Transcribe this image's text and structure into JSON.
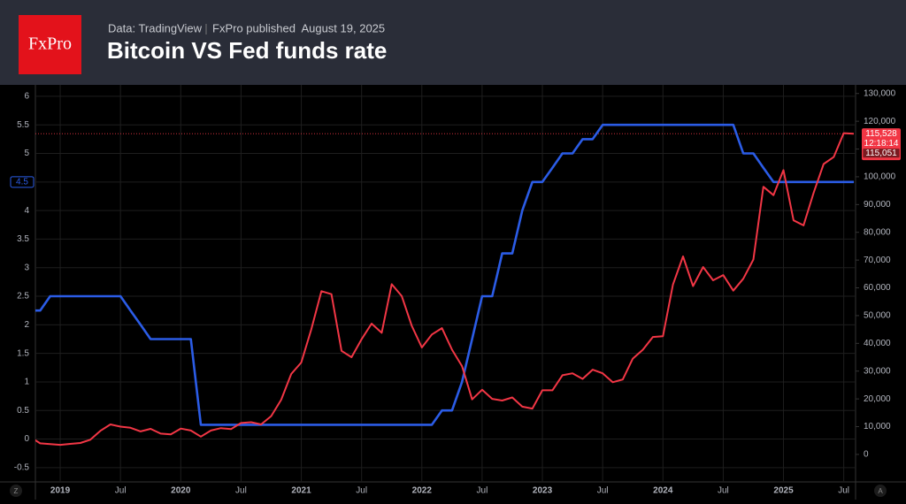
{
  "header": {
    "logo": "FxPro",
    "source": "Data: TradingView",
    "published": "FxPro published  August 19, 2025"
  },
  "ui": {
    "left_button": "Z",
    "right_button": "A"
  },
  "chart_data": {
    "type": "line",
    "title": "Bitcoin VS Fed funds rate",
    "x": [
      "2018-10",
      "2018-11",
      "2018-12",
      "2019-01",
      "2019-02",
      "2019-03",
      "2019-04",
      "2019-05",
      "2019-06",
      "2019-07",
      "2019-08",
      "2019-09",
      "2019-10",
      "2019-11",
      "2019-12",
      "2020-01",
      "2020-02",
      "2020-03",
      "2020-04",
      "2020-05",
      "2020-06",
      "2020-07",
      "2020-08",
      "2020-09",
      "2020-10",
      "2020-11",
      "2020-12",
      "2021-01",
      "2021-02",
      "2021-03",
      "2021-04",
      "2021-05",
      "2021-06",
      "2021-07",
      "2021-08",
      "2021-09",
      "2021-10",
      "2021-11",
      "2021-12",
      "2022-01",
      "2022-02",
      "2022-03",
      "2022-04",
      "2022-05",
      "2022-06",
      "2022-07",
      "2022-08",
      "2022-09",
      "2022-10",
      "2022-11",
      "2022-12",
      "2023-01",
      "2023-02",
      "2023-03",
      "2023-04",
      "2023-05",
      "2023-06",
      "2023-07",
      "2023-08",
      "2023-09",
      "2023-10",
      "2023-11",
      "2023-12",
      "2024-01",
      "2024-02",
      "2024-03",
      "2024-04",
      "2024-05",
      "2024-06",
      "2024-07",
      "2024-08",
      "2024-09",
      "2024-10",
      "2024-11",
      "2024-12",
      "2025-01",
      "2025-02",
      "2025-03",
      "2025-04",
      "2025-05",
      "2025-06",
      "2025-07",
      "2025-08"
    ],
    "series": [
      {
        "name": "Fed funds rate",
        "color": "#2b5ce6",
        "axis": "y",
        "values": [
          2.25,
          2.25,
          2.5,
          2.5,
          2.5,
          2.5,
          2.5,
          2.5,
          2.5,
          2.5,
          2.25,
          2.0,
          1.75,
          1.75,
          1.75,
          1.75,
          1.75,
          0.25,
          0.25,
          0.25,
          0.25,
          0.25,
          0.25,
          0.25,
          0.25,
          0.25,
          0.25,
          0.25,
          0.25,
          0.25,
          0.25,
          0.25,
          0.25,
          0.25,
          0.25,
          0.25,
          0.25,
          0.25,
          0.25,
          0.25,
          0.25,
          0.5,
          0.5,
          1.0,
          1.75,
          2.5,
          2.5,
          3.25,
          3.25,
          4.0,
          4.5,
          4.5,
          4.75,
          5.0,
          5.0,
          5.25,
          5.25,
          5.5,
          5.5,
          5.5,
          5.5,
          5.5,
          5.5,
          5.5,
          5.5,
          5.5,
          5.5,
          5.5,
          5.5,
          5.5,
          5.5,
          5.0,
          5.0,
          4.75,
          4.5,
          4.5,
          4.5,
          4.5,
          4.5,
          4.5,
          4.5,
          4.5,
          4.5
        ]
      },
      {
        "name": "Bitcoin",
        "color": "#f23645",
        "axis": "y2",
        "values": [
          6300,
          4000,
          3700,
          3450,
          3800,
          4100,
          5300,
          8500,
          10800,
          10000,
          9600,
          8300,
          9200,
          7500,
          7200,
          9300,
          8600,
          6400,
          8600,
          9450,
          9100,
          11300,
          11600,
          10800,
          13800,
          19700,
          29000,
          33100,
          45100,
          58800,
          57700,
          37300,
          35000,
          41500,
          47100,
          43800,
          61300,
          57000,
          46300,
          38500,
          43200,
          45500,
          37700,
          31800,
          19800,
          23300,
          20000,
          19400,
          20500,
          17200,
          16500,
          23100,
          23100,
          28500,
          29200,
          27200,
          30500,
          29200,
          26000,
          27000,
          34500,
          37700,
          42300,
          42600,
          61200,
          71300,
          60600,
          67500,
          62700,
          64600,
          59000,
          63300,
          70200,
          96400,
          93400,
          102400,
          84300,
          82500,
          94200,
          104600,
          107100,
          115700,
          115528
        ]
      }
    ],
    "xlim": [
      "2018-10",
      "2025-08"
    ],
    "xticks": [
      {
        "value": "2019-01",
        "label": "2019"
      },
      {
        "value": "2019-07",
        "label": "Jul"
      },
      {
        "value": "2020-01",
        "label": "2020"
      },
      {
        "value": "2020-07",
        "label": "Jul"
      },
      {
        "value": "2021-01",
        "label": "2021"
      },
      {
        "value": "2021-07",
        "label": "Jul"
      },
      {
        "value": "2022-01",
        "label": "2022"
      },
      {
        "value": "2022-07",
        "label": "Jul"
      },
      {
        "value": "2023-01",
        "label": "2023"
      },
      {
        "value": "2023-07",
        "label": "Jul"
      },
      {
        "value": "2024-01",
        "label": "2024"
      },
      {
        "value": "2024-07",
        "label": "Jul"
      },
      {
        "value": "2025-01",
        "label": "2025"
      },
      {
        "value": "2025-07",
        "label": "Jul"
      }
    ],
    "ylim": [
      -0.75,
      6.2
    ],
    "yticks": [
      -0.5,
      0,
      0.5,
      1,
      1.5,
      2,
      2.5,
      3,
      3.5,
      4,
      4.5,
      5,
      5.5,
      6
    ],
    "y2lim": [
      -9900,
      133100
    ],
    "y2ticks": [
      0,
      {
        "value": 10000,
        "label": "10,000"
      },
      {
        "value": 20000,
        "label": "20,000"
      },
      {
        "value": 30000,
        "label": "30,000"
      },
      {
        "value": 40000,
        "label": "40,000"
      },
      {
        "value": 50000,
        "label": "50,000"
      },
      {
        "value": 60000,
        "label": "60,000"
      },
      {
        "value": 70000,
        "label": "70,000"
      },
      {
        "value": 80000,
        "label": "80,000"
      },
      {
        "value": 90000,
        "label": "90,000"
      },
      {
        "value": 100000,
        "label": "100,000"
      },
      {
        "value": 110000,
        "label": "110,000"
      },
      {
        "value": 120000,
        "label": "120,000"
      },
      {
        "value": 130000,
        "label": "130,000"
      }
    ],
    "grid": true,
    "last_price": {
      "value": 115528,
      "label": "115,528"
    },
    "countdown": "12:18:14",
    "prev_close": {
      "value": 115051,
      "label": "115,051"
    },
    "rate_marker": {
      "value": 4.5,
      "label": "4.5"
    }
  }
}
